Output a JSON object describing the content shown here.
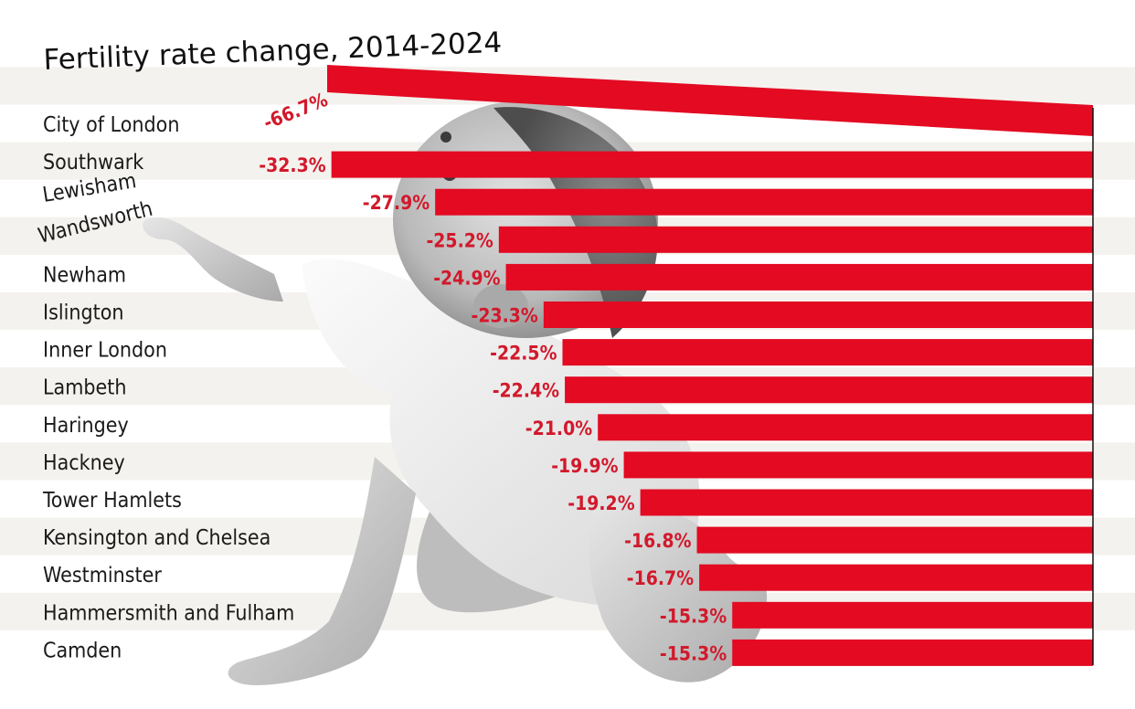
{
  "chart_data": {
    "type": "bar",
    "orientation": "horizontal",
    "title": "Fertility rate change, 2014-2024",
    "categories": [
      "City of London",
      "Southwark",
      "Lewisham",
      "Wandsworth",
      "Newham",
      "Islington",
      "Inner London",
      "Lambeth",
      "Haringey",
      "Hackney",
      "Tower Hamlets",
      "Kensington and Chelsea",
      "Westminster",
      "Hammersmith and Fulham",
      "Camden"
    ],
    "values": [
      -66.7,
      -32.3,
      -27.9,
      -25.2,
      -24.9,
      -23.3,
      -22.5,
      -22.4,
      -21.0,
      -19.9,
      -19.2,
      -16.8,
      -16.7,
      -15.3,
      -15.3
    ],
    "labels": [
      "-66.7%",
      "-32.3%",
      "-27.9%",
      "-25.2%",
      "-24.9%",
      "-23.3%",
      "-22.5%",
      "-22.4%",
      "-21.0%",
      "-19.9%",
      "-19.2%",
      "-16.8%",
      "-16.7%",
      "-15.3%",
      "-15.3%"
    ],
    "unit": "%",
    "bar_color": "#e30a22",
    "label_color": "#d2192b",
    "stripe_color": "#f4f2ee",
    "background": "#ffffff",
    "grid": false,
    "legend": "none",
    "image": "black-and-white photo of a crawling baby looking up"
  }
}
